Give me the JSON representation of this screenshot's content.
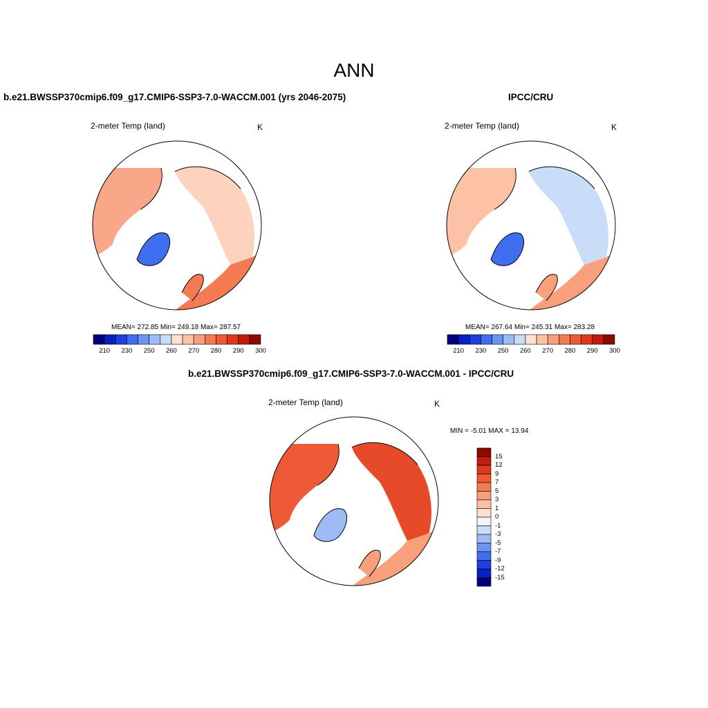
{
  "page": {
    "title": "ANN"
  },
  "panels": {
    "model": {
      "case_title": "b.e21.BWSSP370cmip6.f09_g17.CMIP6-SSP3-7.0-WACCM.001 (yrs 2046-2075)",
      "variable": "2-meter Temp (land)",
      "units": "K",
      "stats": "MEAN= 272.85  Min= 249.18  Max= 287.57"
    },
    "obs": {
      "case_title": "IPCC/CRU",
      "variable": "2-meter Temp (land)",
      "units": "K",
      "stats": "MEAN= 267.64  Min= 245.31  Max= 283.28"
    },
    "diff": {
      "case_title": "b.e21.BWSSP370cmip6.f09_g17.CMIP6-SSP3-7.0-WACCM.001 - IPCC/CRU",
      "variable": "2-meter Temp (land)",
      "units": "K",
      "stats": "MIN =  -5.01 MAX =  13.94"
    }
  },
  "colorbar_abs": {
    "labels": [
      "210",
      "230",
      "250",
      "260",
      "270",
      "280",
      "290",
      "300"
    ],
    "colors": [
      "#00007f",
      "#0a1fc2",
      "#1e3fe0",
      "#3f6ef0",
      "#6c95f2",
      "#9dbcf5",
      "#c9dcf8",
      "#fde0cf",
      "#fbc2a6",
      "#f89f7c",
      "#f47a54",
      "#ee5a35",
      "#e0381c",
      "#c01d0a",
      "#8a0a00"
    ]
  },
  "colorbar_diff": {
    "labels": [
      "15",
      "12",
      "9",
      "7",
      "5",
      "3",
      "1",
      "0",
      "-1",
      "-3",
      "-5",
      "-7",
      "-9",
      "-12",
      "-15"
    ],
    "colors": [
      "#8a0a00",
      "#c01d0a",
      "#e0381c",
      "#ee5a35",
      "#f47a54",
      "#f89f7c",
      "#fbc2a6",
      "#fde0cf",
      "#f2f5fb",
      "#c9dcf8",
      "#9dbcf5",
      "#6c95f2",
      "#3f6ef0",
      "#1e3fe0",
      "#0a1fc2",
      "#00007f"
    ]
  },
  "map_colors": {
    "model": {
      "eurasia": "#fbd3bf",
      "eurasia_south": "#f47a54",
      "america": "#f8a888",
      "greenland": "#3f6ef0"
    },
    "obs": {
      "eurasia": "#c9dcf8",
      "eurasia_south": "#f89f7c",
      "america": "#fbc2a6",
      "greenland": "#3f6ef0"
    },
    "diff": {
      "eurasia": "#e64a28",
      "eurasia_south": "#f89f7c",
      "america": "#ee5a35",
      "greenland": "#9dbcf5"
    }
  }
}
